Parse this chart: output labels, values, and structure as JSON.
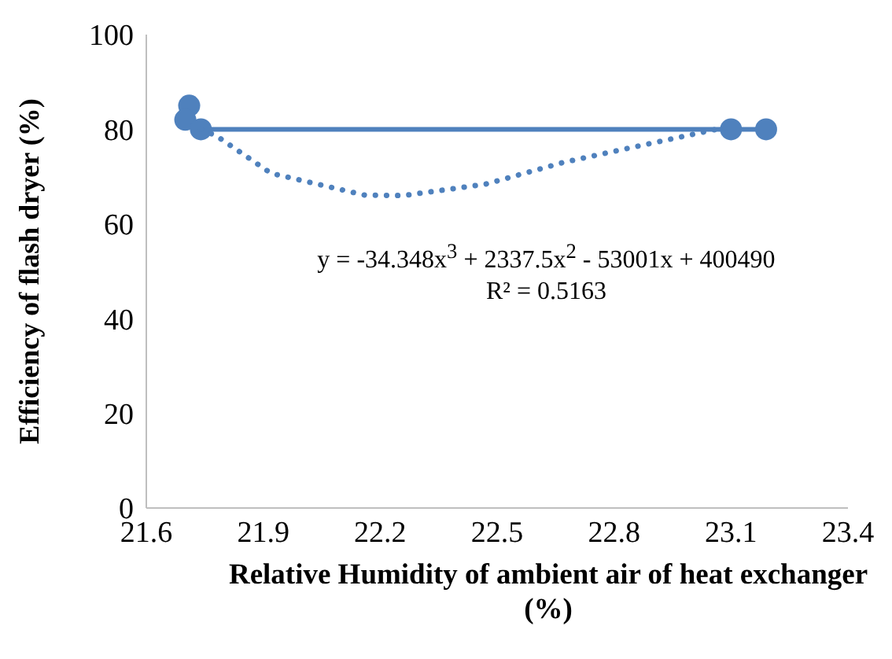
{
  "chart_data": {
    "type": "scatter",
    "xlabel": "Relative Humidity of ambient air of heat exchanger (%)",
    "ylabel": "Efficiency of flash dryer (%)",
    "xlim": [
      21.6,
      23.4
    ],
    "xticks": [
      21.6,
      21.9,
      22.2,
      22.5,
      22.8,
      23.1,
      23.4
    ],
    "ylim": [
      0,
      100
    ],
    "yticks": [
      0,
      20,
      40,
      60,
      80,
      100
    ],
    "series": [
      {
        "type": "line",
        "color": "#4f81bd",
        "marker": "circle",
        "line_style": "solid",
        "x": [
          21.71,
          21.7,
          21.74,
          23.1,
          23.19
        ],
        "values": [
          85,
          82,
          80,
          80,
          80
        ]
      },
      {
        "type": "line",
        "color": "#4f81bd",
        "marker": "none",
        "line_style": "dotted",
        "x": [
          21.74,
          21.78,
          21.92,
          22.16,
          22.26,
          22.47,
          22.67,
          22.87,
          23.08,
          23.1
        ],
        "values": [
          80,
          78.6,
          70.7,
          66.1,
          66,
          68.4,
          73,
          76.6,
          80.3,
          80
        ]
      }
    ],
    "annotations": [
      "y = -34.348x$^{3}$ + 2337.5x$^{2}$ - 53001x + 400490\nR² = 0.5163"
    ]
  }
}
